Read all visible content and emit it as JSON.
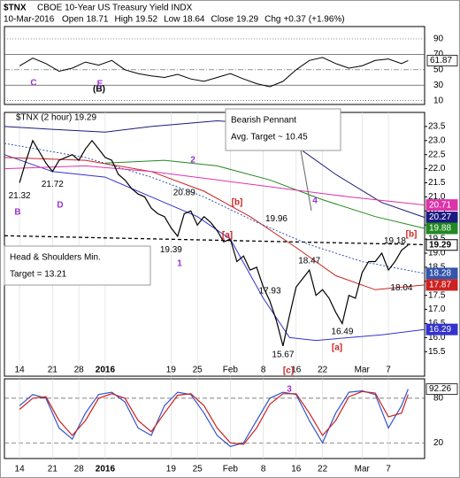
{
  "chart_data": {
    "type": "line",
    "title": "$TNX",
    "subtitle": "CBOE 10-Year US Treasury Yield INDX",
    "date": "10-Mar-2016",
    "quote": {
      "names": [
        "Open",
        "High",
        "Low",
        "Close",
        "Chg"
      ],
      "values": [
        18.71,
        19.52,
        18.64,
        19.29,
        0.37
      ],
      "value_labels": [
        "18.71",
        "19.52",
        "18.64",
        "19.29",
        "+0.37"
      ]
    },
    "change_pct": {
      "value": 1.96,
      "label": "(+1.96%)"
    },
    "xlim": [
      -2.3,
      61.5
    ],
    "xticks": [
      {
        "value": 0,
        "label": "14"
      },
      {
        "value": 5,
        "label": "21"
      },
      {
        "value": 9,
        "label": "28"
      },
      {
        "value": 13,
        "label": "2016"
      },
      {
        "value": 23,
        "label": "19"
      },
      {
        "value": 27,
        "label": "25"
      },
      {
        "value": 32,
        "label": "Feb"
      },
      {
        "value": 37,
        "label": "8"
      },
      {
        "value": 42,
        "label": "16"
      },
      {
        "value": 46,
        "label": "22"
      },
      {
        "value": 52,
        "label": "Mar"
      },
      {
        "value": 56,
        "label": "7"
      }
    ],
    "ylim": [
      15.1,
      24.0
    ],
    "yticks": [
      15.5,
      {
        "value": 16,
        "label": "16.0"
      },
      16.5,
      {
        "value": 17,
        "label": "17.0"
      },
      17.5,
      {
        "value": 18,
        "label": "18.0"
      },
      18.5,
      {
        "value": 19,
        "label": "19.0"
      },
      19.5,
      {
        "value": 20,
        "label": "20.0"
      },
      20.5,
      {
        "value": 21,
        "label": "21.0"
      },
      21.5,
      {
        "value": 22,
        "label": "22.0"
      },
      22.5,
      {
        "value": 23,
        "label": "23.0"
      },
      23.5
    ],
    "series": [
      {
        "name": "$TNX (2 hour)",
        "color": "#000000",
        "x": [
          0,
          1,
          2,
          3,
          4,
          5,
          6,
          7,
          8,
          9,
          10,
          11,
          12,
          13,
          14,
          15,
          16,
          17,
          18,
          19,
          20,
          21,
          22,
          23,
          24,
          25,
          26,
          27,
          28,
          29,
          30,
          31,
          32,
          33,
          34,
          35,
          36,
          37,
          38,
          39,
          40,
          41,
          42,
          43,
          44,
          45,
          46,
          47,
          48,
          49,
          50,
          51,
          52,
          53,
          54,
          55,
          56,
          57,
          58,
          59
        ],
        "values": [
          21.5,
          22.3,
          23.0,
          22.6,
          22.2,
          21.9,
          22.3,
          22.4,
          22.5,
          22.3,
          22.7,
          23.0,
          22.7,
          22.4,
          22.3,
          21.8,
          21.6,
          21.3,
          21.1,
          21.0,
          20.6,
          20.4,
          20.3,
          19.9,
          19.6,
          20.4,
          20.5,
          20.0,
          20.3,
          20.1,
          19.8,
          19.4,
          19.5,
          18.7,
          18.9,
          18.4,
          18.5,
          17.8,
          17.3,
          16.6,
          15.7,
          16.8,
          17.8,
          18.1,
          18.4,
          17.5,
          17.7,
          17.4,
          16.9,
          16.5,
          17.5,
          17.4,
          18.3,
          18.7,
          18.7,
          19.0,
          18.4,
          18.7,
          19.1,
          19.29
        ]
      },
      {
        "color": "#dd33aa",
        "x": [
          -2.3,
          10,
          20,
          30,
          40,
          50,
          61.5
        ],
        "values": [
          22.0,
          22.1,
          21.9,
          21.6,
          21.3,
          21.0,
          20.71
        ]
      },
      {
        "color": "#1a1a80",
        "x": [
          -2.3,
          5,
          13,
          20,
          30,
          36,
          42,
          48,
          55,
          61.5
        ],
        "values": [
          23.5,
          23.4,
          23.3,
          23.5,
          23.7,
          23.6,
          22.8,
          21.8,
          20.8,
          20.27
        ]
      },
      {
        "color": "#228822",
        "x": [
          13,
          22,
          30,
          38,
          46,
          54,
          61.5
        ],
        "values": [
          22.2,
          22.3,
          22.1,
          21.6,
          20.9,
          20.3,
          19.88
        ]
      },
      {
        "color": "#3355aa",
        "dashed": true,
        "x": [
          -2.3,
          10,
          20,
          28,
          36,
          44,
          52,
          61.5
        ],
        "values": [
          22.9,
          22.4,
          21.7,
          21.0,
          20.1,
          19.3,
          18.7,
          18.28
        ]
      },
      {
        "color": "#cc2222",
        "x": [
          -2.3,
          10,
          20,
          28,
          35,
          42,
          48,
          54,
          61.5
        ],
        "values": [
          22.4,
          22.3,
          21.9,
          21.2,
          20.3,
          19.2,
          18.2,
          17.7,
          17.87
        ]
      },
      {
        "color": "#3333cc",
        "x": [
          -2.3,
          5,
          13,
          20,
          27,
          32,
          37,
          41,
          45,
          50,
          55,
          61.5
        ],
        "values": [
          22.5,
          21.9,
          21.7,
          21.0,
          20.3,
          19.5,
          17.4,
          16.0,
          15.9,
          16.0,
          16.1,
          16.29
        ]
      }
    ],
    "neckline": {
      "x": [
        -2.3,
        61.5
      ],
      "values": [
        19.62,
        19.3
      ]
    },
    "point_labels": [
      {
        "x": 0,
        "value": 21.32
      },
      {
        "x": 5,
        "value": 21.72
      },
      {
        "x": 25,
        "value": 20.89
      },
      {
        "x": 23,
        "value": 19.39
      },
      {
        "x": 39,
        "value": 19.96
      },
      {
        "x": 38,
        "value": 17.93
      },
      {
        "x": 44,
        "value": 18.47
      },
      {
        "x": 40,
        "value": 15.67
      },
      {
        "x": 49,
        "value": 16.49
      },
      {
        "x": 57,
        "value": 19.18
      },
      {
        "x": 58,
        "value": 18.04
      }
    ],
    "wave_labels": [
      {
        "text": "(B)",
        "color": "#000000"
      },
      {
        "text": "C",
        "color": "#9933cc"
      },
      {
        "text": "E",
        "color": "#9933cc"
      },
      {
        "text": "B",
        "color": "#9933cc"
      },
      {
        "text": "D",
        "color": "#9933cc"
      },
      {
        "text": "2",
        "color": "#9933cc"
      },
      {
        "text": "1",
        "color": "#9933cc"
      },
      {
        "text": "[b]",
        "color": "#cc2222"
      },
      {
        "text": "[a]",
        "color": "#cc2222"
      },
      {
        "text": "4",
        "color": "#9933cc"
      },
      {
        "text": "[c]",
        "color": "#cc2222"
      },
      {
        "text": "[a]",
        "color": "#cc2222"
      },
      {
        "text": "[b]",
        "color": "#cc2222"
      },
      {
        "text": "3",
        "color": "#9933cc"
      }
    ],
    "notes": [
      {
        "lines": [
          "Bearish Pennant",
          "Avg. Target ~ 10.45"
        ]
      },
      {
        "lines": [
          "Head & Shoulders Min.",
          "Target = 13.21"
        ]
      }
    ],
    "rsi": {
      "ylim": [
        5,
        106
      ],
      "yticks": [
        90,
        70,
        50,
        30,
        10
      ],
      "color": "#000000",
      "x": [
        0,
        2,
        4,
        6,
        8,
        10,
        12,
        14,
        16,
        18,
        20,
        22,
        24,
        26,
        28,
        30,
        32,
        34,
        36,
        38,
        40,
        42,
        44,
        46,
        48,
        50,
        52,
        54,
        56,
        58,
        59
      ],
      "values": [
        55,
        65,
        58,
        48,
        52,
        60,
        56,
        62,
        50,
        45,
        42,
        40,
        44,
        38,
        35,
        40,
        45,
        38,
        32,
        28,
        35,
        50,
        62,
        66,
        58,
        52,
        55,
        62,
        64,
        58,
        61.87
      ]
    },
    "stoch": {
      "ylim": [
        -1,
        106
      ],
      "yticks": [
        80,
        20
      ],
      "x": [
        0,
        2,
        4,
        6,
        8,
        10,
        12,
        14,
        16,
        18,
        20,
        22,
        24,
        26,
        28,
        30,
        32,
        34,
        36,
        38,
        40,
        42,
        44,
        46,
        48,
        50,
        52,
        54,
        56,
        58,
        59
      ],
      "series": [
        {
          "color": "#3355cc",
          "values": [
            70,
            85,
            80,
            40,
            25,
            60,
            85,
            88,
            75,
            40,
            30,
            70,
            88,
            85,
            60,
            30,
            15,
            20,
            50,
            80,
            88,
            85,
            50,
            20,
            60,
            88,
            90,
            85,
            40,
            70,
            92.26
          ]
        },
        {
          "color": "#cc2222",
          "values": [
            65,
            80,
            82,
            50,
            30,
            50,
            80,
            86,
            80,
            50,
            35,
            60,
            84,
            86,
            70,
            40,
            20,
            18,
            40,
            72,
            86,
            86,
            60,
            30,
            50,
            82,
            89,
            87,
            55,
            60,
            85
          ]
        }
      ]
    }
  }
}
